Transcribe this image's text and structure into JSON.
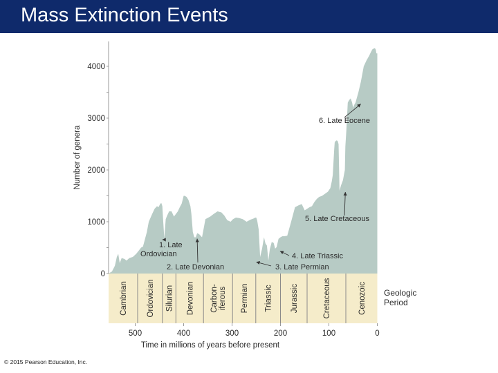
{
  "header": {
    "title": "Mass Extinction Events"
  },
  "footer": {
    "copyright": "© 2015 Pearson Education, Inc."
  },
  "colors": {
    "title_bar": "#0f2a6b",
    "area_fill": "#b7cbc5",
    "period_band": "#f5ecca",
    "divider": "#8a8a8a"
  },
  "chart_data": {
    "type": "area",
    "title": "",
    "xlabel": "Time in millions of years before present",
    "ylabel": "Number of genera",
    "xlim": [
      555,
      0
    ],
    "ylim": [
      0,
      4400
    ],
    "x_ticks": [
      500,
      400,
      300,
      200,
      100,
      0
    ],
    "y_ticks": [
      0,
      1000,
      2000,
      3000,
      4000
    ],
    "x_tick_labels": [
      "500",
      "400",
      "300",
      "200",
      "100",
      "0"
    ],
    "y_tick_labels": [
      "0",
      "1000",
      "2000",
      "3000",
      "4000"
    ],
    "series": [
      {
        "name": "Number of genera",
        "x": [
          555,
          548,
          542,
          538,
          535,
          532,
          528,
          522,
          518,
          512,
          505,
          498,
          492,
          488,
          484,
          476,
          472,
          465,
          460,
          455,
          452,
          448,
          446,
          444,
          442,
          440,
          437,
          434,
          430,
          425,
          420,
          416,
          412,
          408,
          404,
          400,
          398,
          394,
          390,
          386,
          384,
          381,
          378,
          375,
          372,
          368,
          362,
          355,
          345,
          338,
          330,
          322,
          316,
          310,
          303,
          298,
          292,
          285,
          278,
          270,
          262,
          256,
          252,
          250,
          248,
          245,
          242,
          238,
          234,
          231,
          228,
          225,
          222,
          218,
          214,
          211,
          208,
          204,
          200,
          196,
          192,
          186,
          178,
          170,
          162,
          156,
          150,
          145,
          140,
          135,
          130,
          125,
          120,
          114,
          108,
          102,
          97,
          94,
          92,
          89,
          88,
          86,
          84,
          82,
          80,
          78,
          75,
          71,
          69,
          67,
          66,
          64,
          61,
          58,
          55,
          52,
          50,
          48,
          45,
          42,
          39,
          34,
          30,
          28,
          22,
          17,
          13,
          10,
          8,
          5,
          3,
          2,
          0
        ],
        "values": [
          0,
          40,
          150,
          320,
          380,
          200,
          300,
          280,
          250,
          300,
          320,
          380,
          450,
          500,
          520,
          800,
          1000,
          1150,
          1250,
          1300,
          1280,
          1350,
          1360,
          1300,
          980,
          680,
          1050,
          1120,
          1200,
          1200,
          1100,
          1150,
          1200,
          1280,
          1350,
          1500,
          1500,
          1480,
          1420,
          1300,
          1150,
          800,
          700,
          700,
          780,
          760,
          700,
          1050,
          1100,
          1150,
          1200,
          1180,
          1120,
          1030,
          1000,
          1050,
          1080,
          1070,
          1050,
          1000,
          1040,
          1060,
          1080,
          1080,
          1020,
          850,
          320,
          480,
          700,
          580,
          540,
          250,
          470,
          610,
          590,
          480,
          510,
          670,
          700,
          720,
          720,
          730,
          1000,
          1280,
          1320,
          1340,
          1220,
          1250,
          1280,
          1300,
          1380,
          1440,
          1480,
          1500,
          1540,
          1580,
          1650,
          1780,
          1900,
          2400,
          2530,
          2560,
          2570,
          2560,
          2500,
          1600,
          1700,
          1800,
          1900,
          2000,
          2450,
          2750,
          3300,
          3350,
          3380,
          3300,
          3200,
          3250,
          3300,
          3400,
          3500,
          3700,
          3900,
          4000,
          4120,
          4200,
          4280,
          4330,
          4340,
          4350,
          4320,
          4250,
          4250
        ]
      }
    ],
    "y_axis_minor_ticks": [
      500,
      1500,
      2500,
      3500
    ],
    "annotations": [
      {
        "id": "late-ordovician",
        "label": [
          "1. Late",
          "Ordovician"
        ],
        "x": 444,
        "y": 680
      },
      {
        "id": "late-devonian",
        "label": [
          "2. Late Devonian"
        ],
        "x": 372,
        "y": 700
      },
      {
        "id": "late-permian",
        "label": [
          "3. Late Permian"
        ],
        "x": 250,
        "y": 250
      },
      {
        "id": "late-triassic",
        "label": [
          "4. Late Triassic"
        ],
        "x": 201,
        "y": 460
      },
      {
        "id": "late-cretaceous",
        "label": [
          "5. Late Cretaceous"
        ],
        "x": 66,
        "y": 1600
      },
      {
        "id": "late-eocene",
        "label": [
          "6. Late Eocene"
        ],
        "x": 34,
        "y": 3300
      }
    ],
    "geologic_periods": {
      "heading": [
        "Geologic",
        "Period"
      ],
      "items": [
        {
          "name": "Cambrian",
          "lines": [
            "Cambrian"
          ],
          "start": 555,
          "end": 495
        },
        {
          "name": "Ordovician",
          "lines": [
            "Ordovician"
          ],
          "start": 495,
          "end": 444
        },
        {
          "name": "Silurian",
          "lines": [
            "Silurian"
          ],
          "start": 444,
          "end": 416
        },
        {
          "name": "Devonian",
          "lines": [
            "Devonian"
          ],
          "start": 416,
          "end": 359
        },
        {
          "name": "Carboniferous",
          "lines": [
            "Carbon-",
            "iferous"
          ],
          "start": 359,
          "end": 299
        },
        {
          "name": "Permian",
          "lines": [
            "Permian"
          ],
          "start": 299,
          "end": 251
        },
        {
          "name": "Triassic",
          "lines": [
            "Triassic"
          ],
          "start": 251,
          "end": 200
        },
        {
          "name": "Jurassic",
          "lines": [
            "Jurassic"
          ],
          "start": 200,
          "end": 145
        },
        {
          "name": "Cretaceous",
          "lines": [
            "Cretaceous"
          ],
          "start": 145,
          "end": 65
        },
        {
          "name": "Cenozoic",
          "lines": [
            "Cenozoic"
          ],
          "start": 65,
          "end": 0
        }
      ]
    }
  }
}
